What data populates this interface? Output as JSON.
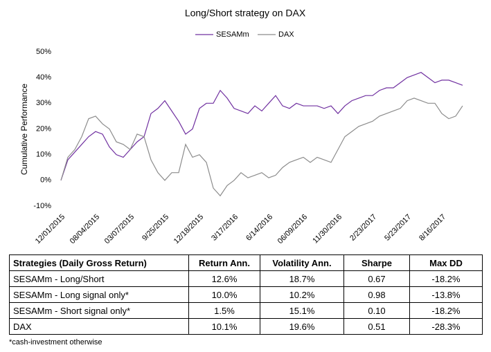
{
  "chart_data": {
    "type": "line",
    "title": "Long/Short strategy on DAX",
    "y_label": "Cumulative Performance",
    "categories": [
      "12/01/2015",
      null,
      null,
      null,
      null,
      "08/04/2015",
      null,
      null,
      null,
      null,
      "03/07/2015",
      null,
      null,
      null,
      null,
      "9/25/2015",
      null,
      null,
      null,
      null,
      "12/18/2015",
      null,
      null,
      null,
      null,
      "3/17/2016",
      null,
      null,
      null,
      null,
      "6/14/2016",
      null,
      null,
      null,
      null,
      "06/09/2016",
      null,
      null,
      null,
      null,
      "11/30/2016",
      null,
      null,
      null,
      null,
      "2/23/2017",
      null,
      null,
      null,
      null,
      "5/23/2017",
      null,
      null,
      null,
      null,
      "8/16/2017",
      null,
      null,
      null
    ],
    "series": [
      {
        "name": "SESAMm",
        "color": "#7030a0",
        "values": [
          0,
          8,
          11,
          14,
          17,
          19,
          18,
          13,
          10,
          9,
          12,
          15,
          17,
          26,
          28,
          31,
          27,
          23,
          18,
          20,
          28,
          30,
          30,
          35,
          32,
          28,
          27,
          26,
          29,
          27,
          30,
          33,
          29,
          28,
          30,
          29,
          29,
          29,
          28,
          29,
          26,
          29,
          31,
          32,
          33,
          33,
          35,
          36,
          36,
          38,
          40,
          41,
          42,
          40,
          38,
          39,
          39,
          38,
          37
        ]
      },
      {
        "name": "DAX",
        "color": "#8c8c8c",
        "values": [
          0,
          9,
          12,
          17,
          24,
          25,
          22,
          20,
          15,
          14,
          12,
          18,
          17,
          8,
          3,
          0,
          3,
          3,
          14,
          9,
          10,
          7,
          -3,
          -6,
          -2,
          0,
          3,
          1,
          2,
          3,
          1,
          2,
          5,
          7,
          8,
          9,
          7,
          9,
          8,
          7,
          12,
          17,
          19,
          21,
          22,
          23,
          25,
          26,
          27,
          28,
          31,
          32,
          31,
          30,
          30,
          26,
          24,
          25,
          29
        ]
      }
    ],
    "ylim": [
      -10,
      50
    ],
    "yticks": [
      {
        "value": -10,
        "label": "-10%"
      },
      {
        "value": 0,
        "label": "0%"
      },
      {
        "value": 10,
        "label": "10%"
      },
      {
        "value": 20,
        "label": "20%"
      },
      {
        "value": 30,
        "label": "30%"
      },
      {
        "value": 40,
        "label": "40%"
      },
      {
        "value": 50,
        "label": "50%"
      }
    ],
    "grid": false
  },
  "table": {
    "columns": [
      "Strategies (Daily Gross Return)",
      "Return Ann.",
      "Volatility Ann.",
      "Sharpe",
      "Max DD"
    ],
    "rows": [
      [
        "SESAMm - Long/Short",
        "12.6%",
        "18.7%",
        "0.67",
        "-18.2%"
      ],
      [
        "SESAMm - Long signal only*",
        "10.0%",
        "10.2%",
        "0.98",
        "-13.8%"
      ],
      [
        "SESAMm - Short signal only*",
        "1.5%",
        "15.1%",
        "0.10",
        "-18.2%"
      ],
      [
        "DAX",
        "10.1%",
        "19.6%",
        "0.51",
        "-28.3%"
      ]
    ]
  },
  "footnote": "*cash-investment otherwise"
}
